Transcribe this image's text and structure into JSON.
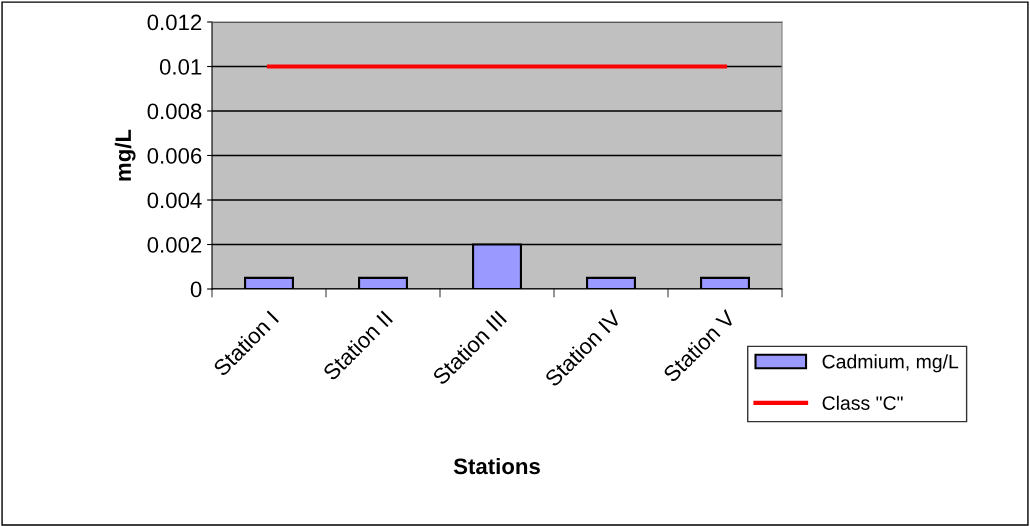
{
  "chart_data": {
    "type": "bar",
    "xlabel": "Stations",
    "ylabel": "mg/L",
    "categories": [
      "Station I",
      "Station II",
      "Station III",
      "Station IV",
      "Station V"
    ],
    "series": [
      {
        "name": "Cadmium, mg/L",
        "color": "#9999ff",
        "values": [
          0.0005,
          0.0005,
          0.002,
          0.0005,
          0.0005
        ]
      },
      {
        "name": "Class \"C\"",
        "type": "line",
        "color": "#ff0000",
        "values": [
          0.01,
          0.01,
          0.01,
          0.01,
          0.01
        ]
      }
    ],
    "ylim": [
      0,
      0.012
    ],
    "yticks": [
      0,
      0.002,
      0.004,
      0.006,
      0.008,
      0.01,
      0.012
    ],
    "grid": "y",
    "legend": "right",
    "marker": "none",
    "line_style": "solid"
  }
}
